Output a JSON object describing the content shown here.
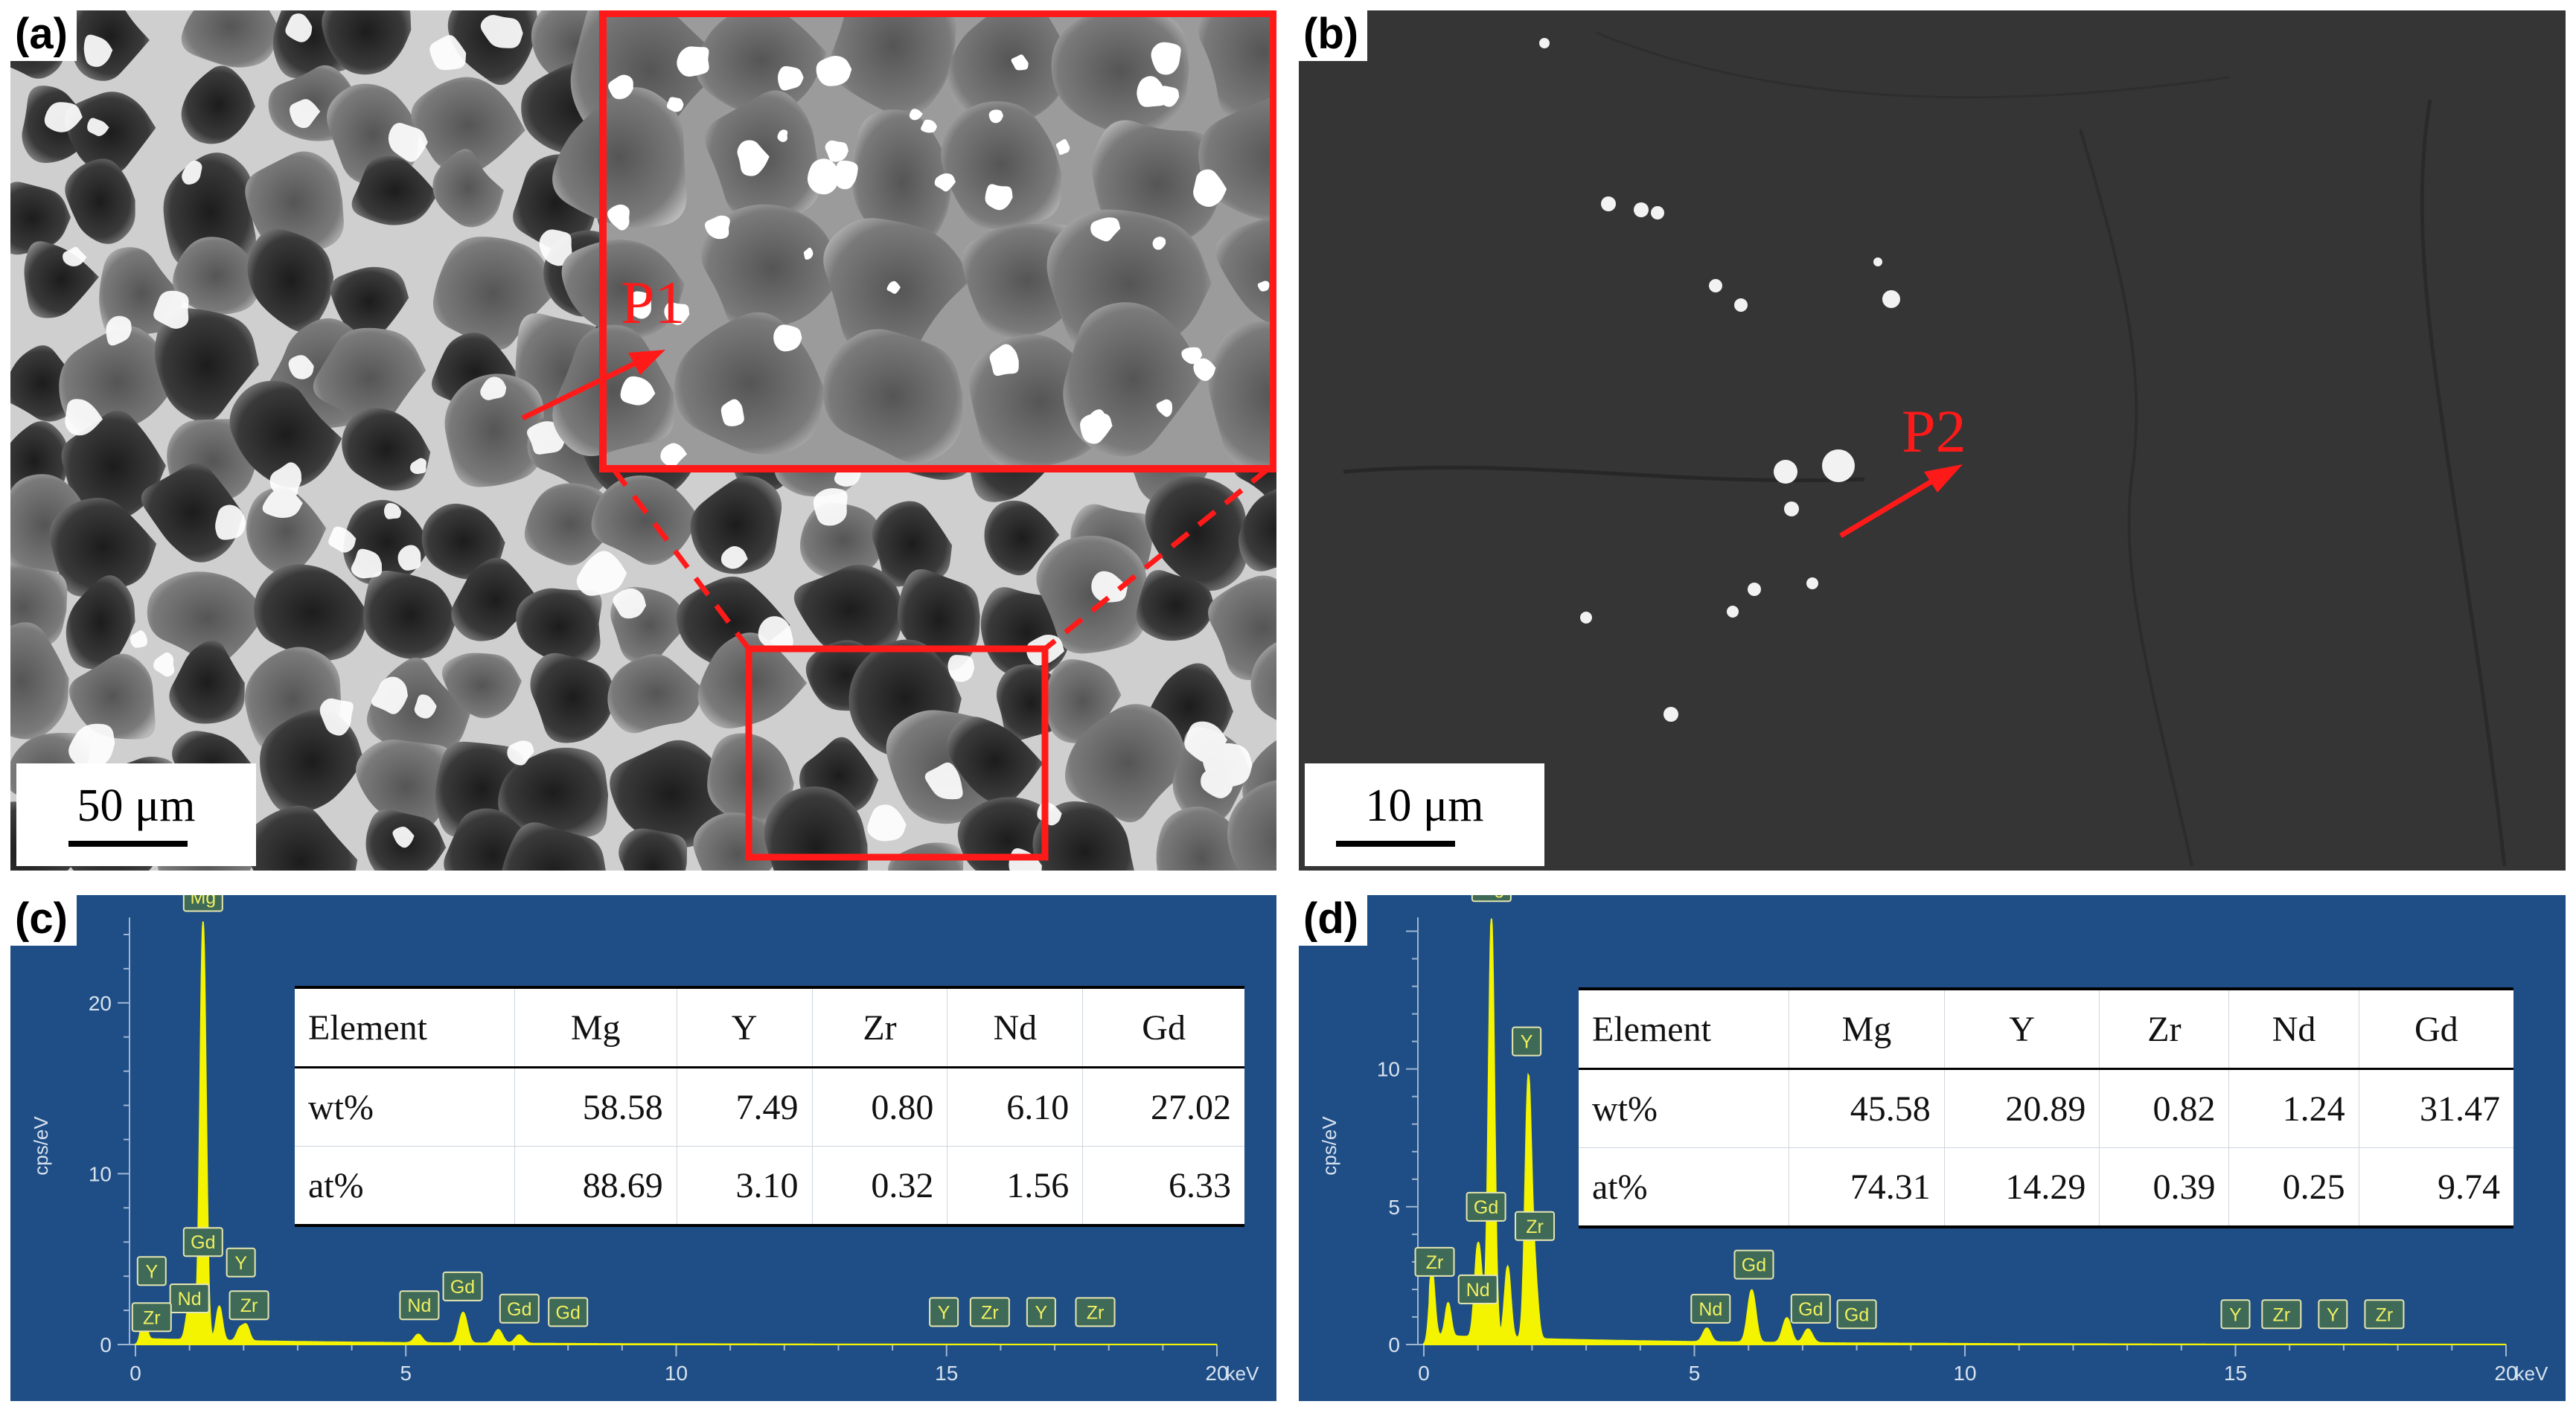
{
  "panels": {
    "a": {
      "label": "(a)",
      "scale": "50 μm",
      "point": "P1"
    },
    "b": {
      "label": "(b)",
      "scale": "10 μm",
      "point": "P2"
    },
    "c": {
      "label": "(c)",
      "table": {
        "headers": [
          "Element",
          "Mg",
          "Y",
          "Zr",
          "Nd",
          "Gd"
        ],
        "rows": [
          {
            "label": "wt%",
            "values": [
              "58.58",
              "7.49",
              "0.80",
              "6.10",
              "27.02"
            ]
          },
          {
            "label": "at%",
            "values": [
              "88.69",
              "3.10",
              "0.32",
              "1.56",
              "6.33"
            ]
          }
        ]
      }
    },
    "d": {
      "label": "(d)",
      "table": {
        "headers": [
          "Element",
          "Mg",
          "Y",
          "Zr",
          "Nd",
          "Gd"
        ],
        "rows": [
          {
            "label": "wt%",
            "values": [
              "45.58",
              "20.89",
              "0.82",
              "1.24",
              "31.47"
            ]
          },
          {
            "label": "at%",
            "values": [
              "74.31",
              "14.29",
              "0.39",
              "0.25",
              "9.74"
            ]
          }
        ]
      }
    }
  },
  "colors": {
    "annotation_red": "#ff1a1a",
    "eds_background": "#1f4e86",
    "spectrum_yellow": "#f4f400"
  },
  "chart_data": [
    {
      "type": "area",
      "panel": "c",
      "xlabel": "keV",
      "ylabel": "cps/eV",
      "xlim": [
        0,
        20
      ],
      "ylim": [
        0,
        25
      ],
      "xticks": [
        "0",
        "5",
        "10",
        "15",
        "20"
      ],
      "yticks": [
        "0",
        "10",
        "20"
      ],
      "peaks": [
        {
          "keV": 0.15,
          "height": 1.6
        },
        {
          "keV": 1.25,
          "height": 24.5
        },
        {
          "keV": 1.05,
          "height": 1.2
        },
        {
          "keV": 0.98,
          "height": 1.5
        },
        {
          "keV": 1.55,
          "height": 2.0
        },
        {
          "keV": 1.93,
          "height": 0.7
        },
        {
          "keV": 2.05,
          "height": 0.9
        },
        {
          "keV": 5.23,
          "height": 0.5
        },
        {
          "keV": 6.06,
          "height": 1.8
        },
        {
          "keV": 6.71,
          "height": 0.8
        },
        {
          "keV": 7.1,
          "height": 0.5
        }
      ],
      "peak_labels": [
        {
          "text": "Mg",
          "keV": 1.25,
          "y": 26.2
        },
        {
          "text": "Gd",
          "keV": 1.25,
          "y": 6.0
        },
        {
          "text": "Y",
          "keV": 0.3,
          "y": 4.3
        },
        {
          "text": "Nd",
          "keV": 1.0,
          "y": 2.7
        },
        {
          "text": "Zr",
          "keV": 0.3,
          "y": 1.6
        },
        {
          "text": "Y",
          "keV": 1.95,
          "y": 4.8
        },
        {
          "text": "Zr",
          "keV": 2.1,
          "y": 2.3
        },
        {
          "text": "Nd",
          "keV": 5.25,
          "y": 2.3
        },
        {
          "text": "Gd",
          "keV": 6.05,
          "y": 3.4
        },
        {
          "text": "Gd",
          "keV": 7.1,
          "y": 2.1
        },
        {
          "text": "Gd",
          "keV": 8.0,
          "y": 1.9
        },
        {
          "text": "Y",
          "keV": 14.95,
          "y": 1.9
        },
        {
          "text": "Zr",
          "keV": 15.8,
          "y": 1.9
        },
        {
          "text": "Y",
          "keV": 16.75,
          "y": 1.9
        },
        {
          "text": "Zr",
          "keV": 17.75,
          "y": 1.9
        }
      ]
    },
    {
      "type": "area",
      "panel": "d",
      "xlabel": "keV",
      "ylabel": "cps/eV",
      "xlim": [
        0,
        20
      ],
      "ylim": [
        0,
        15.5
      ],
      "xticks": [
        "0",
        "5",
        "10",
        "15",
        "20"
      ],
      "yticks": [
        "0",
        "5",
        "10"
      ],
      "peaks": [
        {
          "keV": 0.15,
          "height": 2.4
        },
        {
          "keV": 0.45,
          "height": 1.2
        },
        {
          "keV": 1.25,
          "height": 15.2
        },
        {
          "keV": 1.05,
          "height": 1.8
        },
        {
          "keV": 0.98,
          "height": 2.4
        },
        {
          "keV": 1.55,
          "height": 2.6
        },
        {
          "keV": 1.93,
          "height": 9.3
        },
        {
          "keV": 2.05,
          "height": 2.2
        },
        {
          "keV": 5.23,
          "height": 0.5
        },
        {
          "keV": 6.06,
          "height": 1.9
        },
        {
          "keV": 6.71,
          "height": 0.9
        },
        {
          "keV": 7.1,
          "height": 0.5
        }
      ],
      "peak_labels": [
        {
          "text": "Mg",
          "keV": 1.25,
          "y": 16.6
        },
        {
          "text": "Y",
          "keV": 1.9,
          "y": 11.0
        },
        {
          "text": "Gd",
          "keV": 1.15,
          "y": 5.0
        },
        {
          "text": "Zr",
          "keV": 2.05,
          "y": 4.3
        },
        {
          "text": "Zr",
          "keV": 0.2,
          "y": 3.0
        },
        {
          "text": "Nd",
          "keV": 1.0,
          "y": 2.0
        },
        {
          "text": "Nd",
          "keV": 5.3,
          "y": 1.3
        },
        {
          "text": "Gd",
          "keV": 6.1,
          "y": 2.9
        },
        {
          "text": "Gd",
          "keV": 7.15,
          "y": 1.3
        },
        {
          "text": "Gd",
          "keV": 8.0,
          "y": 1.1
        },
        {
          "text": "Y",
          "keV": 15.0,
          "y": 1.1
        },
        {
          "text": "Zr",
          "keV": 15.85,
          "y": 1.1
        },
        {
          "text": "Y",
          "keV": 16.8,
          "y": 1.1
        },
        {
          "text": "Zr",
          "keV": 17.75,
          "y": 1.1
        }
      ]
    }
  ]
}
